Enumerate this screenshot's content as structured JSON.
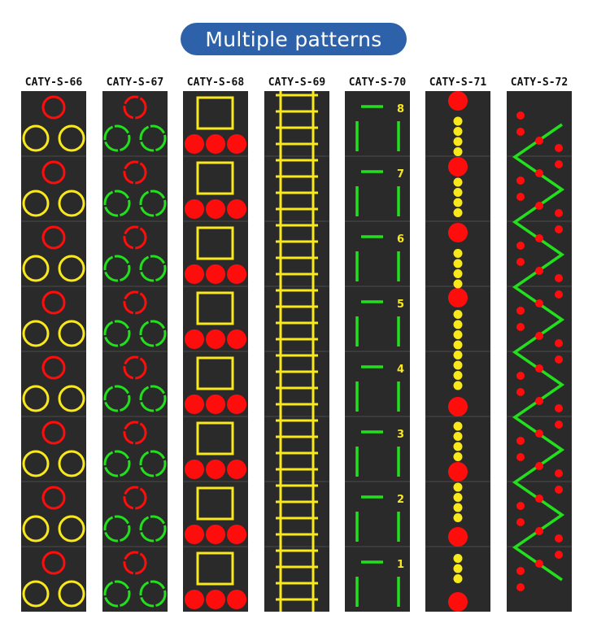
{
  "title": "Multiple patterns",
  "patterns": [
    {
      "code": "CATY-S-66"
    },
    {
      "code": "CATY-S-67"
    },
    {
      "code": "CATY-S-68"
    },
    {
      "code": "CATY-S-69"
    },
    {
      "code": "CATY-S-70",
      "numbers": [
        "8",
        "7",
        "6",
        "5",
        "4",
        "3",
        "2",
        "1"
      ]
    },
    {
      "code": "CATY-S-71"
    },
    {
      "code": "CATY-S-72"
    }
  ],
  "colors": {
    "red": "#ff0d0d",
    "yellow": "#f8e81c",
    "green": "#22e01c",
    "surface": "#2a2a2a",
    "title_bg": "#2d62aa"
  }
}
